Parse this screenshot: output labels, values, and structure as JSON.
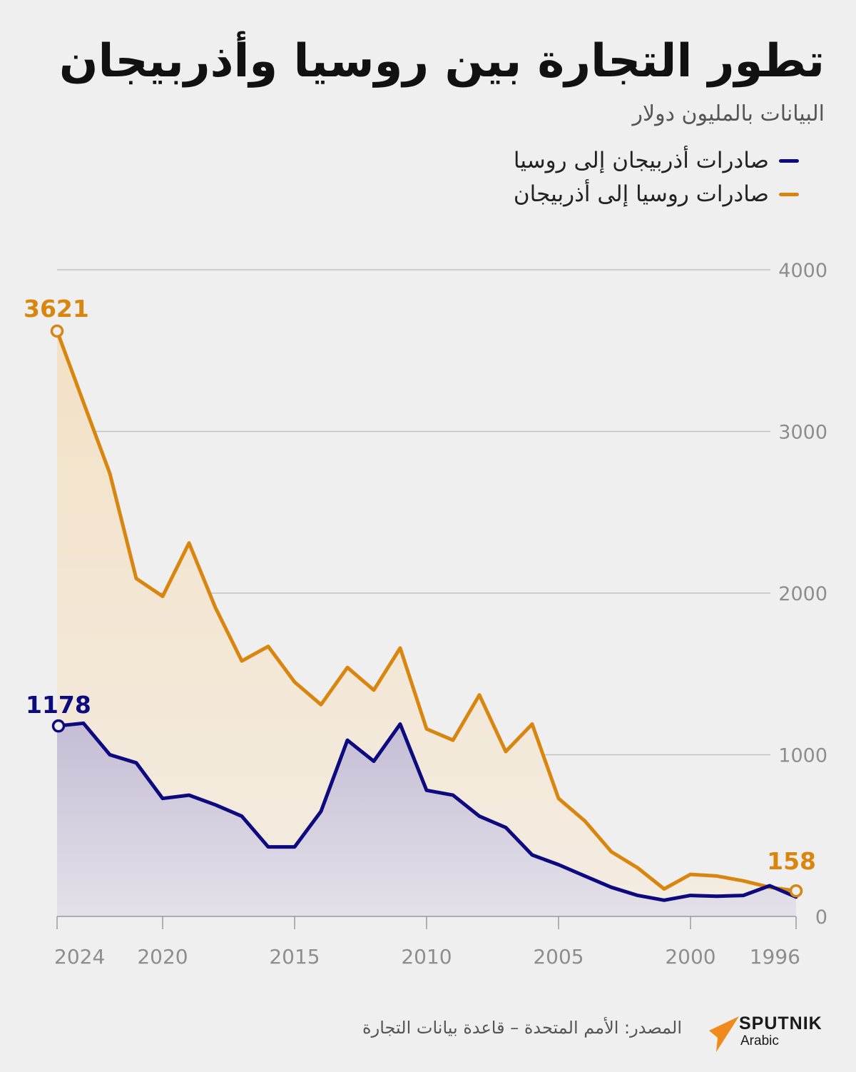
{
  "chart_data": {
    "type": "area",
    "title": "تطور التجارة بين روسيا وأذربيجان",
    "subtitle": "البيانات بالمليون دولار",
    "ylim": [
      0,
      4000
    ],
    "yticks": [
      0,
      1000,
      2000,
      3000,
      4000
    ],
    "xticks": [
      2024,
      2020,
      2015,
      2010,
      2005,
      2000,
      1996
    ],
    "x": [
      2024,
      2023,
      2022,
      2021,
      2020,
      2019,
      2018,
      2017,
      2016,
      2015,
      2014,
      2013,
      2012,
      2011,
      2010,
      2009,
      2008,
      2007,
      2006,
      2005,
      2004,
      2003,
      2002,
      2001,
      2000,
      1999,
      1998,
      1997,
      1996
    ],
    "series": [
      {
        "name": "صادرات أذربيجان إلى روسيا",
        "color": "#0d0a80",
        "fill": "#c4bdd8",
        "values": [
          1178,
          1195,
          1000,
          950,
          730,
          750,
          690,
          620,
          430,
          430,
          650,
          1090,
          960,
          1190,
          780,
          750,
          620,
          550,
          380,
          320,
          250,
          180,
          130,
          100,
          130,
          125,
          130,
          190,
          120
        ],
        "end_labels": {
          "first": "1178"
        }
      },
      {
        "name": "صادرات روسيا إلى أذربيجان",
        "color": "#d8860f",
        "fill": "#f3e1c6",
        "values": [
          3621,
          3180,
          2740,
          2090,
          1980,
          2310,
          1910,
          1580,
          1670,
          1450,
          1310,
          1540,
          1400,
          1660,
          1160,
          1090,
          1370,
          1020,
          1190,
          730,
          590,
          400,
          300,
          170,
          260,
          250,
          220,
          180,
          158
        ],
        "end_labels": {
          "first": "3621",
          "last": "158"
        }
      }
    ]
  },
  "footer": {
    "source": "المصدر: الأمم المتحدة – قاعدة بيانات التجارة",
    "brand": "SPUTNIK",
    "brand_sub": "Arabic"
  }
}
